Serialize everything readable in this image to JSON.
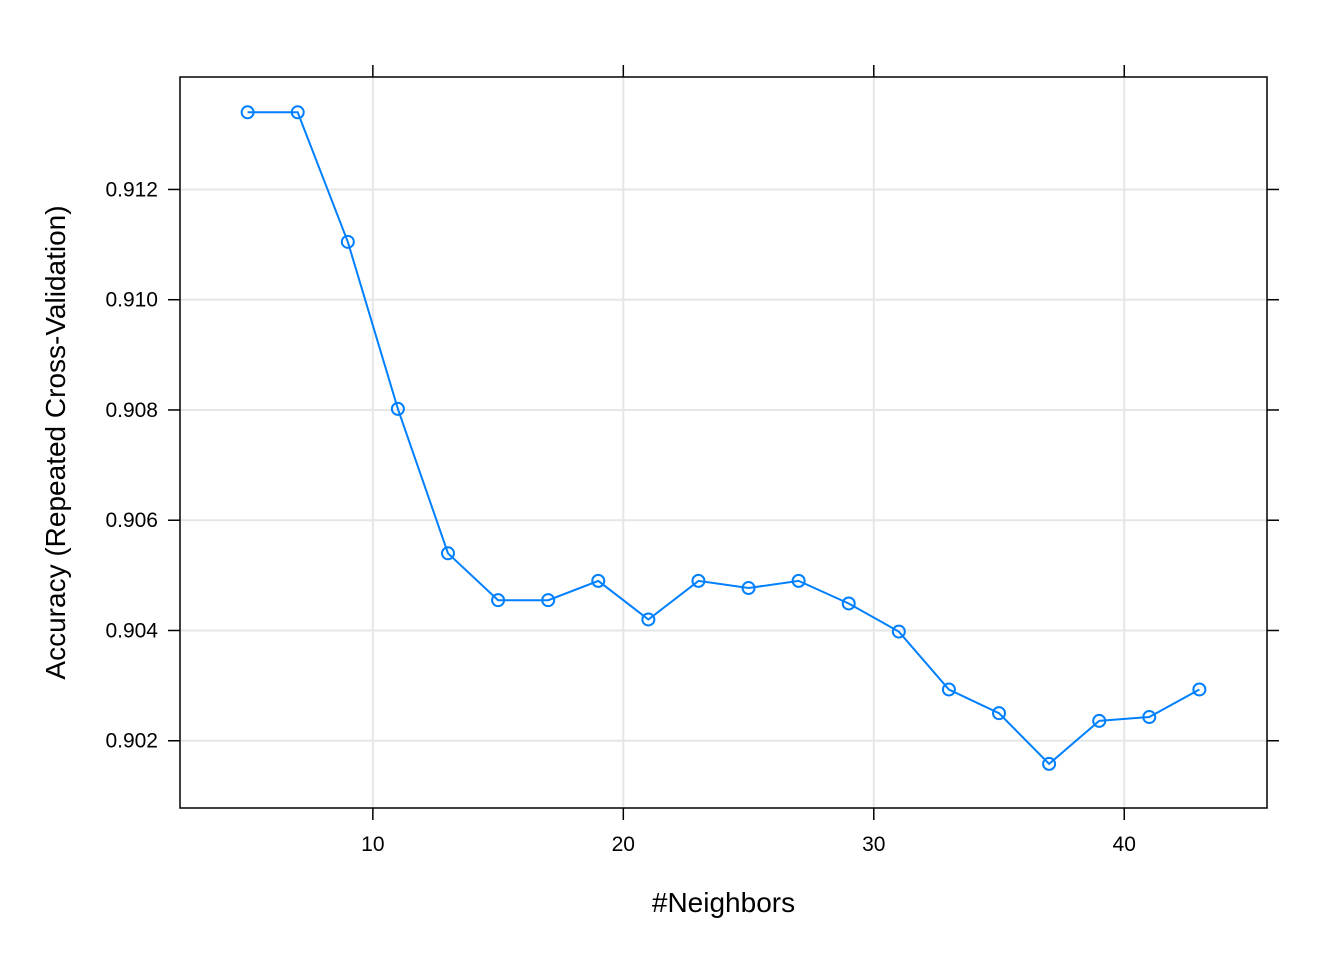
{
  "chart_data": {
    "type": "line",
    "title": "",
    "xlabel": "#Neighbors",
    "ylabel": "Accuracy (Repeated Cross-Validation)",
    "xlim": [
      2.3,
      45.7
    ],
    "ylim": [
      0.90078,
      0.91404
    ],
    "grid": true,
    "x_ticks": [
      10,
      20,
      30,
      40
    ],
    "y_ticks": [
      0.902,
      0.904,
      0.906,
      0.908,
      0.91,
      0.912
    ],
    "x_tick_labels": [
      "10",
      "20",
      "30",
      "40"
    ],
    "y_tick_labels": [
      "0.902",
      "0.904",
      "0.906",
      "0.908",
      "0.910",
      "0.912"
    ],
    "series": [
      {
        "color": "#0080ff",
        "marker": "open-circle",
        "x": [
          5,
          7,
          9,
          11,
          13,
          15,
          17,
          19,
          21,
          23,
          25,
          27,
          29,
          31,
          33,
          35,
          37,
          39,
          41,
          43
        ],
        "y": [
          0.9134,
          0.9134,
          0.91105,
          0.90802,
          0.9054,
          0.90455,
          0.90455,
          0.9049,
          0.9042,
          0.9049,
          0.90477,
          0.9049,
          0.90449,
          0.90398,
          0.90293,
          0.9025,
          0.90158,
          0.90236,
          0.90243,
          0.90293
        ]
      }
    ]
  }
}
